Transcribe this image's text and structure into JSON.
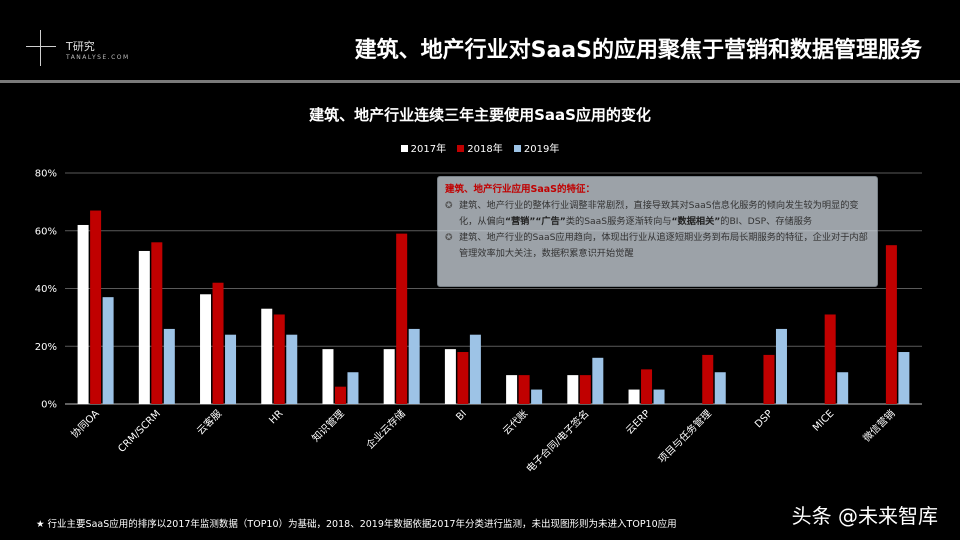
{
  "brand": {
    "name": "T研究",
    "sub": "TANALYSE.COM"
  },
  "page_title": "建筑、地产行业对SaaS的应用聚焦于营销和数据管理服务",
  "colors": {
    "s2017": "#ffffff",
    "s2018": "#c00000",
    "s2019": "#9dc3e6",
    "grid": "#5a5a5a"
  },
  "note": {
    "heading": "建筑、地产行业应用SaaS的特征：",
    "bullet1": {
      "part1": "建筑、地产行业的整体行业调整非常剧烈，直接导致其对SaaS信息化服务的倾向发生较为明显的变化，从偏向",
      "em1": "“营销”",
      "em2": "“广告”",
      "part2": "类的SaaS服务逐渐转向与",
      "em3": "“数据相关”",
      "part3": "的BI、DSP、存储服务"
    },
    "bullet2": "建筑、地产行业的SaaS应用趋向，体现出行业从追逐短期业务到布局长期服务的特征，企业对于内部管理效率加大关注，数据积累意识开始觉醒"
  },
  "footnote": "★  行业主要SaaS应用的排序以2017年监测数据（TOP10）为基础，2018、2019年数据依据2017年分类进行监测，未出现图形则为未进入TOP10应用",
  "watermark": "头条 @未来智库",
  "chart_data": {
    "type": "bar",
    "title": "建筑、地产行业连续三年主要使用SaaS应用的变化",
    "categories": [
      "协同OA",
      "CRM/SCRM",
      "云客服",
      "HR",
      "知识管理",
      "企业云存储",
      "BI",
      "云代账",
      "电子合同/电子签名",
      "云ERP",
      "项目与任务管理",
      "DSP",
      "MICE",
      "微信营销"
    ],
    "series": [
      {
        "name": "2017年",
        "values": [
          62,
          53,
          38,
          33,
          19,
          19,
          19,
          10,
          10,
          5,
          null,
          null,
          null,
          null
        ]
      },
      {
        "name": "2018年",
        "values": [
          67,
          56,
          42,
          31,
          6,
          59,
          18,
          10,
          10,
          12,
          17,
          17,
          31,
          55
        ]
      },
      {
        "name": "2019年",
        "values": [
          37,
          26,
          24,
          24,
          11,
          26,
          24,
          5,
          16,
          5,
          11,
          26,
          11,
          18
        ]
      }
    ],
    "ylim": [
      0,
      80
    ],
    "yticks": [
      "0%",
      "20%",
      "40%",
      "60%",
      "80%"
    ],
    "grid": true,
    "legend_position": "top-center"
  }
}
